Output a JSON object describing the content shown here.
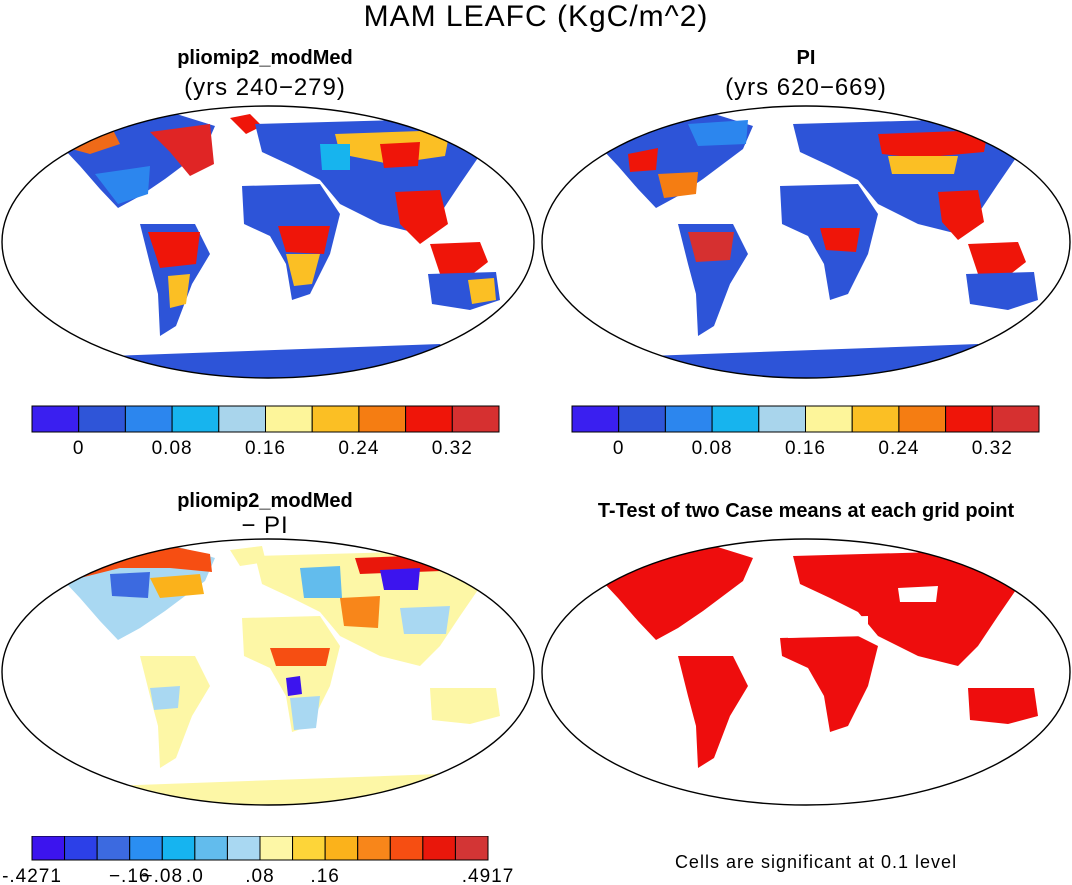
{
  "title": "MAM LEAFC (KgC/m^2)",
  "panels": [
    {
      "title": "pliomip2_modMed",
      "subtitle": "(yrs 240−279)"
    },
    {
      "title": "PI",
      "subtitle": "(yrs 620−669)"
    },
    {
      "title": "pliomip2_modMed",
      "subtitle": "− PI"
    },
    {
      "title": "T-Test of two Case means at each grid point",
      "subtitle": ""
    }
  ],
  "colorbars": [
    {
      "labels": [
        "0",
        "0.08",
        "0.16",
        "0.24",
        "0.32"
      ],
      "colors": [
        "#3a1ff0",
        "#2f55d8",
        "#2c86ee",
        "#17b4ee",
        "#a9d5ec",
        "#fdf59a",
        "#fbbf24",
        "#f57d12",
        "#ef1509",
        "#d63030"
      ]
    },
    {
      "labels": [
        "-.4271",
        "−.16",
        "−.08",
        ".0",
        ".08",
        ".16",
        ".4917"
      ],
      "colors": [
        "#3c14ee",
        "#2c40e8",
        "#3c6ae0",
        "#2a8ef2",
        "#16b4f0",
        "#62bced",
        "#a9d8f2",
        "#fdf7a6",
        "#fdd539",
        "#fbb21b",
        "#f8861a",
        "#f64e12",
        "#e9170b",
        "#d33535"
      ]
    }
  ],
  "note": "Cells are significant at 0.1 level",
  "colors": {
    "land_base": "#2d54d8",
    "significant": "#ee0d0d",
    "diff_base": "#fcf3a4",
    "outline": "#000000"
  }
}
